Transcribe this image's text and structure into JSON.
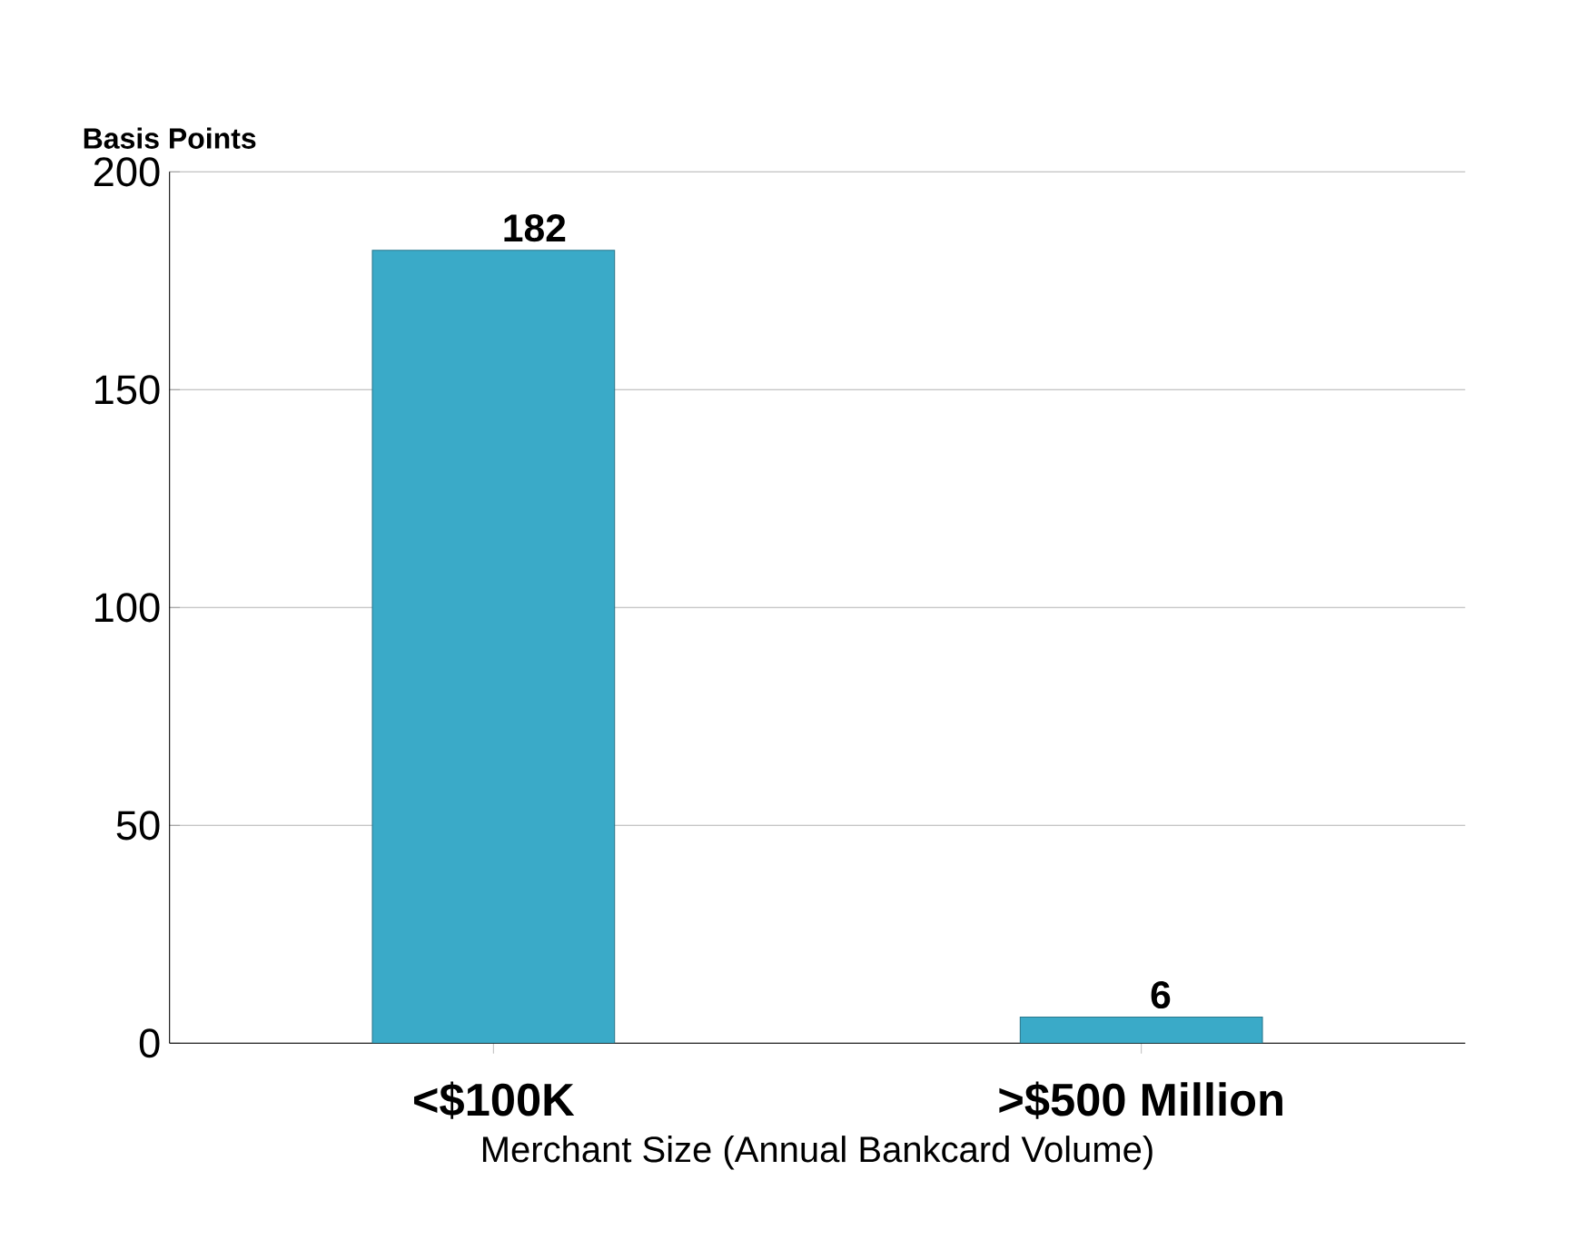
{
  "chart_data": {
    "type": "bar",
    "ylabel": "Basis Points",
    "xlabel": "Merchant Size (Annual Bankcard Volume)",
    "categories": [
      "<$100K",
      ">$500 Million"
    ],
    "values": [
      182,
      6
    ],
    "color": "#3aaac8",
    "ylim": [
      0,
      200
    ],
    "yticks": [
      0,
      50,
      100,
      150,
      200
    ],
    "grid": "y",
    "data_labels": true
  }
}
